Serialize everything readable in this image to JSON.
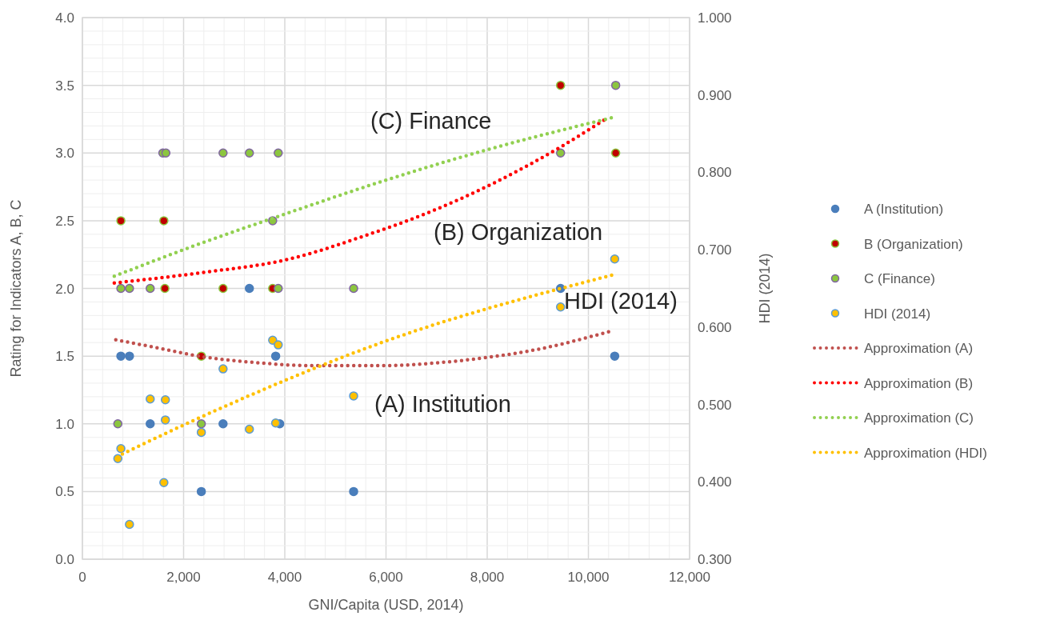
{
  "chart_data": {
    "type": "scatter",
    "xlabel": "GNI/Capita (USD, 2014)",
    "ylabel": "Rating for Indicators A, B, C",
    "y2label": "HDI (2014)",
    "xlim": [
      0,
      12000
    ],
    "xticks": [
      0,
      {
        "value": 2000,
        "label": "2,000"
      },
      {
        "value": 4000,
        "label": "4,000"
      },
      {
        "value": 6000,
        "label": "6,000"
      },
      {
        "value": 8000,
        "label": "8,000"
      },
      {
        "value": 10000,
        "label": "10,000"
      },
      {
        "value": 12000,
        "label": "12,000"
      }
    ],
    "ylim": [
      0,
      4
    ],
    "yticks": [
      {
        "value": 0,
        "label": "0.0"
      },
      {
        "value": 0.5,
        "label": "0.5"
      },
      {
        "value": 1,
        "label": "1.0"
      },
      {
        "value": 1.5,
        "label": "1.5"
      },
      {
        "value": 2,
        "label": "2.0"
      },
      {
        "value": 2.5,
        "label": "2.5"
      },
      {
        "value": 3,
        "label": "3.0"
      },
      {
        "value": 3.5,
        "label": "3.5"
      },
      {
        "value": 4,
        "label": "4.0"
      }
    ],
    "y2lim": [
      0.3,
      1.0
    ],
    "y2ticks": [
      {
        "value": 0.3,
        "label": "0.300"
      },
      {
        "value": 0.4,
        "label": "0.400"
      },
      {
        "value": 0.5,
        "label": "0.500"
      },
      {
        "value": 0.6,
        "label": "0.600"
      },
      {
        "value": 0.7,
        "label": "0.700"
      },
      {
        "value": 0.8,
        "label": "0.800"
      },
      {
        "value": 0.9,
        "label": "0.900"
      },
      {
        "value": 1.0,
        "label": "1.000"
      }
    ],
    "grid": true,
    "legend": "right",
    "marker": "circle",
    "series": [
      {
        "name": "A (Institution)",
        "color": "#4a7ebb",
        "x": [
          760,
          930,
          1340,
          2350,
          2780,
          3300,
          3820,
          3900,
          5360,
          9450,
          10520
        ],
        "values": [
          1.5,
          1.5,
          1.0,
          0.5,
          1.0,
          2.0,
          1.5,
          1.0,
          0.5,
          2.0,
          1.5
        ]
      },
      {
        "name": "B (Organization)",
        "color": "#c00000",
        "x": [
          760,
          1610,
          1630,
          2350,
          2780,
          3760,
          9450,
          10540
        ],
        "values": [
          2.5,
          2.5,
          2.0,
          1.5,
          2.0,
          2.0,
          3.5,
          3.0
        ]
      },
      {
        "name": "C (Finance)",
        "color": "#8cc63f",
        "x": [
          700,
          760,
          930,
          1340,
          1590,
          1650,
          2350,
          2780,
          3300,
          3760,
          3870,
          3870,
          5360,
          9450,
          10540
        ],
        "values": [
          1.0,
          2.0,
          2.0,
          2.0,
          3.0,
          3.0,
          1.0,
          3.0,
          3.0,
          2.5,
          3.0,
          2.0,
          2.0,
          3.0,
          3.5
        ]
      },
      {
        "name": "HDI (2014)",
        "color": "#ffc000",
        "axis": "y2",
        "x": [
          700,
          760,
          930,
          1340,
          1610,
          1640,
          1640,
          2350,
          2780,
          3300,
          3760,
          3820,
          3870,
          5360,
          9450,
          10520
        ],
        "values": [
          0.43,
          0.443,
          0.345,
          0.507,
          0.399,
          0.506,
          0.48,
          0.464,
          0.546,
          0.468,
          0.583,
          0.476,
          0.577,
          0.511,
          0.626,
          0.688
        ]
      },
      {
        "name": "Approximation (A)",
        "type": "line",
        "marker": "none",
        "line_style": "dotted",
        "color": "#c0504d",
        "x": [
          660,
          1500,
          2300,
          3500,
          4500,
          6000,
          7000,
          8000,
          9000,
          10400
        ],
        "values": [
          1.62,
          1.56,
          1.5,
          1.45,
          1.43,
          1.43,
          1.45,
          1.49,
          1.55,
          1.68
        ]
      },
      {
        "name": "Approximation (B)",
        "type": "line",
        "marker": "none",
        "line_style": "dotted",
        "color": "#ff0000",
        "x": [
          630,
          2430,
          4010,
          5590,
          6900,
          9430,
          10380
        ],
        "values": [
          2.04,
          2.12,
          2.21,
          2.39,
          2.57,
          3.04,
          3.26
        ]
      },
      {
        "name": "Approximation (C)",
        "type": "line",
        "marker": "none",
        "line_style": "dotted",
        "color": "#92d050",
        "x": [
          630,
          2320,
          4010,
          6000,
          7960,
          10460
        ],
        "values": [
          2.09,
          2.33,
          2.55,
          2.8,
          3.02,
          3.26
        ]
      },
      {
        "name": "Approximation (HDI)",
        "type": "line",
        "marker": "none",
        "line_style": "dotted",
        "color": "#ffc000",
        "axis": "y2",
        "x": [
          790,
          2320,
          6000,
          10460
        ],
        "values": [
          0.436,
          0.483,
          0.582,
          0.667
        ]
      }
    ],
    "annotations": [
      "(C) Finance",
      "(B) Organization",
      "HDI (2014)",
      "(A) Institution"
    ]
  }
}
